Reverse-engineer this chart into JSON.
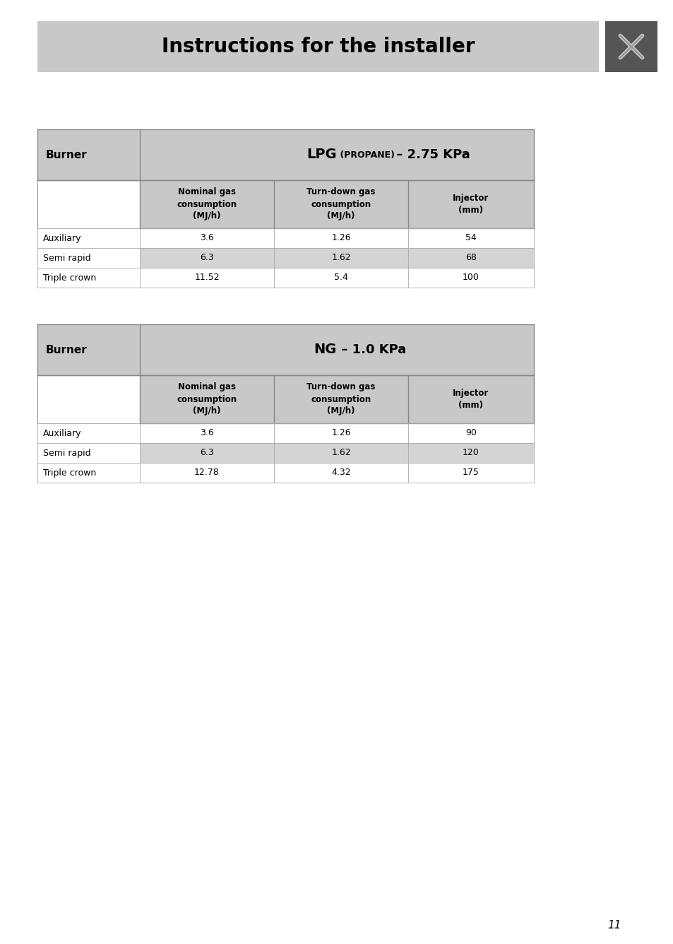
{
  "page_bg": "#ffffff",
  "header_bg": "#c8c8c8",
  "header_text": "Instructions for the installer",
  "icon_bg": "#555555",
  "table_header_bg": "#c8c8c8",
  "row_alt_bg": "#d4d4d4",
  "table_border": "#999999",
  "lpg_table": {
    "title_bold": "LPG",
    "title_small": " (PROPANE)",
    "title_rest": " – 2.75 KPa",
    "col_headers": [
      "Nominal gas\nconsumption\n(MJ/h)",
      "Turn-down gas\nconsumption\n(MJ/h)",
      "Injector\n(mm)"
    ],
    "rows": [
      [
        "Auxiliary",
        "3.6",
        "1.26",
        "54"
      ],
      [
        "Semi rapid",
        "6.3",
        "1.62",
        "68"
      ],
      [
        "Triple crown",
        "11.52",
        "5.4",
        "100"
      ]
    ]
  },
  "ng_table": {
    "title_bold": "NG",
    "title_rest": " – 1.0 KPa",
    "col_headers": [
      "Nominal gas\nconsumption\n(MJ/h)",
      "Turn-down gas\nconsumption\n(MJ/h)",
      "Injector\n(mm)"
    ],
    "rows": [
      [
        "Auxiliary",
        "3.6",
        "1.26",
        "90"
      ],
      [
        "Semi rapid",
        "6.3",
        "1.62",
        "120"
      ],
      [
        "Triple crown",
        "12.78",
        "4.32",
        "175"
      ]
    ]
  },
  "page_number": "11",
  "fig_w": 9.54,
  "fig_h": 13.36,
  "dpi": 100
}
